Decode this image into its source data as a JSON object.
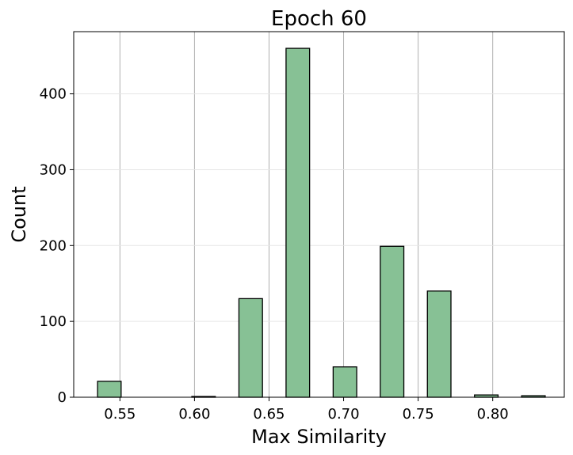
{
  "chart_data": {
    "type": "bar",
    "title": "Epoch 60",
    "xlabel": "Max Similarity",
    "ylabel": "Count",
    "xlim": [
      0.519,
      0.848
    ],
    "ylim": [
      0,
      482
    ],
    "x_ticks": [
      0.55,
      0.6,
      0.65,
      0.7,
      0.75,
      0.8
    ],
    "x_tick_labels": [
      "0.55",
      "0.60",
      "0.65",
      "0.70",
      "0.75",
      "0.80"
    ],
    "y_ticks": [
      0,
      100,
      200,
      300,
      400
    ],
    "y_tick_labels": [
      "0",
      "100",
      "200",
      "300",
      "400"
    ],
    "bin_width": 0.0158,
    "bins": [
      {
        "left": 0.535,
        "value": 21
      },
      {
        "left": 0.5508,
        "value": 0
      },
      {
        "left": 0.5666,
        "value": 0
      },
      {
        "left": 0.5824,
        "value": 0
      },
      {
        "left": 0.5982,
        "value": 1
      },
      {
        "left": 0.614,
        "value": 0
      },
      {
        "left": 0.6298,
        "value": 130
      },
      {
        "left": 0.6456,
        "value": 0
      },
      {
        "left": 0.6614,
        "value": 460
      },
      {
        "left": 0.6772,
        "value": 0
      },
      {
        "left": 0.693,
        "value": 40
      },
      {
        "left": 0.7088,
        "value": 0
      },
      {
        "left": 0.7246,
        "value": 199
      },
      {
        "left": 0.7404,
        "value": 0
      },
      {
        "left": 0.7562,
        "value": 140
      },
      {
        "left": 0.772,
        "value": 0
      },
      {
        "left": 0.7878,
        "value": 3
      },
      {
        "left": 0.8036,
        "value": 0
      },
      {
        "left": 0.8194,
        "value": 2
      }
    ],
    "grid": true,
    "legend": "none",
    "bar_color": "#87c195",
    "edge_color": "#000000"
  }
}
